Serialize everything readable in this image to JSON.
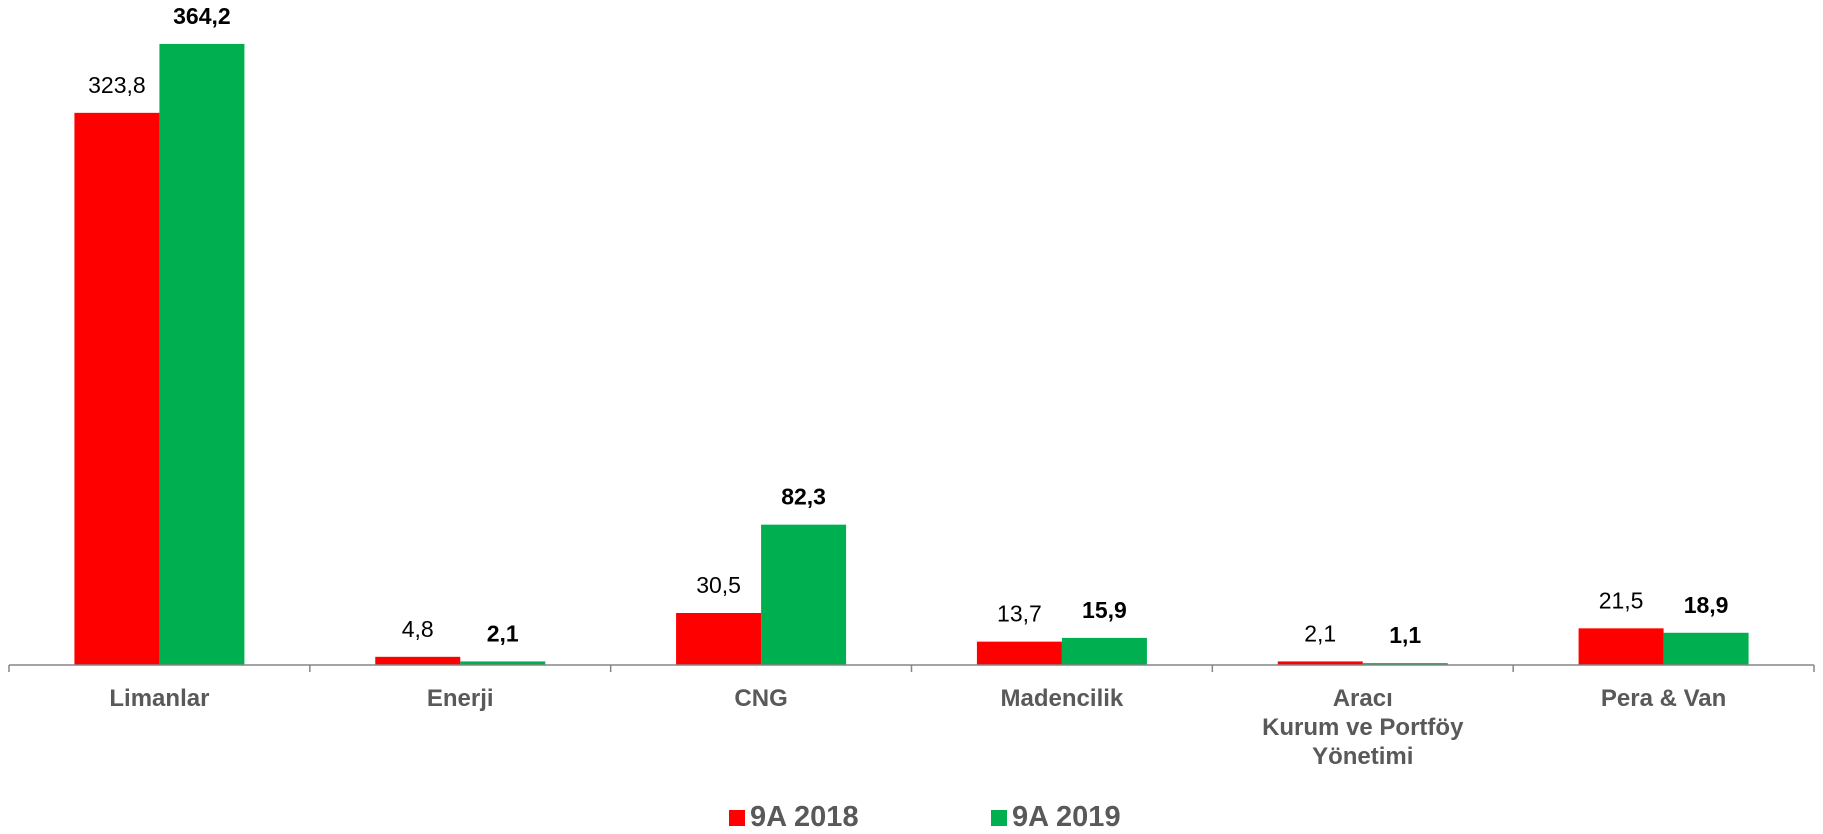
{
  "chart_data": {
    "type": "bar",
    "categories": [
      "Limanlar",
      "Enerji",
      "CNG",
      "Madencilik",
      "Aracı\nKurum ve Portföy\nYönetimi",
      "Pera & Van"
    ],
    "series": [
      {
        "name": "9A 2018",
        "color": "#ff0000",
        "values": [
          323.8,
          4.8,
          30.5,
          13.7,
          2.1,
          21.5
        ],
        "value_labels": [
          "323,8",
          "4,8",
          "30,5",
          "13,7",
          "2,1",
          "21,5"
        ]
      },
      {
        "name": "9A 2019",
        "color": "#00b050",
        "values": [
          364.2,
          2.1,
          82.3,
          15.9,
          1.1,
          18.9
        ],
        "value_labels": [
          "364,2",
          "2,1",
          "82,3",
          "15,9",
          "1,1",
          "18,9"
        ]
      }
    ],
    "ylim": [
      0,
      380
    ],
    "legend": "bottom"
  }
}
